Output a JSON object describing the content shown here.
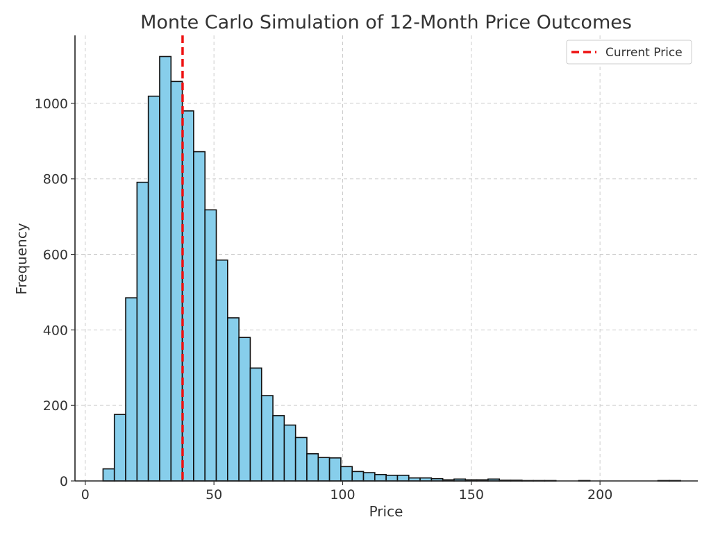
{
  "chart_data": {
    "type": "bar",
    "title": "Monte Carlo Simulation of 12-Month Price Outcomes",
    "xlabel": "Price",
    "ylabel": "Frequency",
    "xlim": [
      -4,
      238
    ],
    "ylim": [
      0,
      1180
    ],
    "x_ticks": [
      0,
      50,
      100,
      150,
      200
    ],
    "y_ticks": [
      0,
      200,
      400,
      600,
      800,
      1000
    ],
    "grid": true,
    "legend_position": "top-right",
    "bar_color": "#87ceeb",
    "bin_width": 4.4,
    "bin_start": 6.9,
    "values": [
      32,
      176,
      485,
      791,
      1019,
      1124,
      1058,
      980,
      872,
      718,
      585,
      432,
      380,
      299,
      226,
      173,
      148,
      115,
      72,
      62,
      61,
      38,
      25,
      22,
      17,
      15,
      15,
      8,
      8,
      6,
      3,
      5,
      3,
      3,
      5,
      2,
      2,
      1,
      1,
      1,
      0,
      0,
      1,
      0,
      0,
      0,
      0,
      0,
      0,
      1,
      1
    ],
    "reference_line": {
      "x": 37.8,
      "name": "Current Price",
      "color": "#ee1111"
    }
  }
}
